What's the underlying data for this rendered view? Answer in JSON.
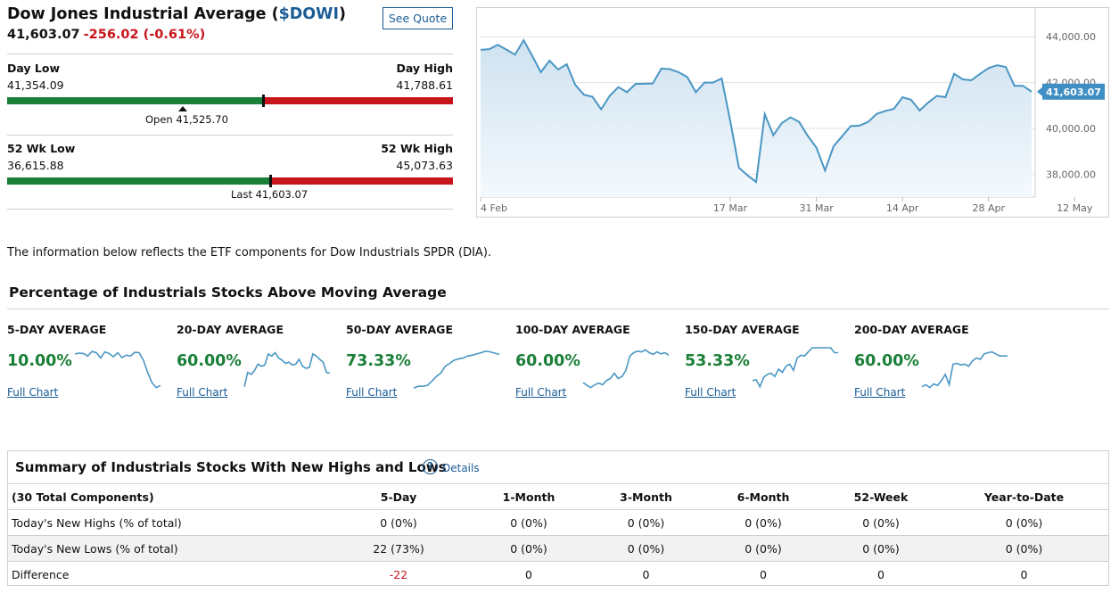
{
  "header": {
    "title": "Dow Jones Industrial Average (",
    "symbol": "$DOWI",
    "title_close": ")",
    "see_quote": "See Quote",
    "price": "41,603.07",
    "change": "-256.02 (-0.61%)"
  },
  "day_range": {
    "low_label": "Day Low",
    "low_value": "41,354.09",
    "high_label": "Day High",
    "high_value": "41,788.61",
    "open_text": "Open 41,525.70",
    "open_fraction": 0.394,
    "current_fraction": 0.574
  },
  "week52_range": {
    "low_label": "52 Wk Low",
    "low_value": "36,615.88",
    "high_label": "52 Wk High",
    "high_value": "45,073.63",
    "last_text": "Last 41,603.07",
    "current_fraction": 0.59
  },
  "colors": {
    "positive": "#1a7f37",
    "negative": "#c8151b",
    "link": "#1a5c96",
    "line": "#4a96c4",
    "price_tag": "#3f8fc5"
  },
  "chart_data": {
    "type": "area",
    "x_ticks": [
      "4 Feb",
      "17 Mar",
      "31 Mar",
      "14 Apr",
      "28 Apr",
      "12 May"
    ],
    "x_tick_index": [
      0,
      29,
      39,
      49,
      59,
      69
    ],
    "y_ticks": [
      "44,000.00",
      "42,000.00",
      "40,000.00",
      "38,000.00"
    ],
    "y_tick_values": [
      44000,
      42000,
      40000,
      38000
    ],
    "ylim": [
      37000,
      45100
    ],
    "last_price_tag": "41,603.07",
    "values": [
      43430,
      43460,
      43650,
      43440,
      43220,
      43850,
      43170,
      42450,
      42960,
      42570,
      42800,
      41900,
      41470,
      41380,
      40830,
      41420,
      41800,
      41580,
      41940,
      41950,
      41960,
      42610,
      42590,
      42450,
      42240,
      41580,
      42000,
      42000,
      42180,
      40330,
      38280,
      37950,
      37660,
      40620,
      39700,
      40240,
      40480,
      40280,
      39670,
      39160,
      38160,
      39220,
      39660,
      40100,
      40120,
      40280,
      40630,
      40760,
      40850,
      41360,
      41250,
      40780,
      41130,
      41420,
      41360,
      42380,
      42140,
      42100,
      42380,
      42630,
      42760,
      42680,
      41860,
      41860,
      41603
    ]
  },
  "info_text": "The information below reflects the ETF components for Dow Industrials SPDR (DIA).",
  "section_title": "Percentage of Industrials Stocks Above Moving Average",
  "averages": [
    {
      "label": "5-DAY AVERAGE",
      "value": "10.00%",
      "link": "Full Chart",
      "spark": [
        85,
        87,
        86,
        80,
        91,
        88,
        75,
        90,
        86,
        78,
        88,
        76,
        82,
        80,
        89,
        88,
        70,
        40,
        15,
        3,
        8
      ]
    },
    {
      "label": "20-DAY AVERAGE",
      "value": "60.00%",
      "link": "Full Chart",
      "spark": [
        5,
        40,
        35,
        45,
        60,
        55,
        58,
        85,
        80,
        88,
        75,
        70,
        62,
        65,
        58,
        60,
        72,
        55,
        50,
        52,
        85,
        80,
        72,
        65,
        40,
        38
      ]
    },
    {
      "label": "50-DAY AVERAGE",
      "value": "73.33%",
      "link": "Full Chart",
      "spark": [
        2,
        6,
        6,
        8,
        18,
        30,
        38,
        55,
        62,
        70,
        73,
        75,
        80,
        82,
        85,
        88,
        92,
        90,
        87,
        84
      ]
    },
    {
      "label": "100-DAY AVERAGE",
      "value": "60.00%",
      "link": "Full Chart",
      "spark": [
        15,
        8,
        3,
        10,
        14,
        10,
        20,
        25,
        38,
        25,
        30,
        45,
        80,
        88,
        92,
        90,
        95,
        88,
        84,
        90,
        85,
        88,
        82
      ]
    },
    {
      "label": "150-DAY AVERAGE",
      "value": "53.33%",
      "link": "Full Chart",
      "spark": [
        20,
        22,
        5,
        28,
        35,
        38,
        30,
        48,
        40,
        55,
        60,
        45,
        75,
        82,
        80,
        90,
        100,
        100,
        100,
        100,
        100,
        100,
        88,
        88
      ]
    },
    {
      "label": "200-DAY AVERAGE",
      "value": "60.00%",
      "link": "Full Chart",
      "spark": [
        5,
        10,
        3,
        12,
        8,
        20,
        35,
        10,
        60,
        62,
        58,
        60,
        55,
        68,
        75,
        72,
        85,
        88,
        90,
        85,
        80,
        80,
        80
      ]
    }
  ],
  "summary": {
    "title": "Summary of Industrials Stocks With New Highs and Lows",
    "help_glyph": "?",
    "details_link": "Details",
    "columns": [
      "(30 Total Components)",
      "5-Day",
      "1-Month",
      "3-Month",
      "6-Month",
      "52-Week",
      "Year-to-Date"
    ],
    "rows": [
      [
        "Today's New Highs (% of total)",
        "0 (0%)",
        "0 (0%)",
        "0 (0%)",
        "0 (0%)",
        "0 (0%)",
        "0 (0%)"
      ],
      [
        "Today's New Lows (% of total)",
        "22 (73%)",
        "0 (0%)",
        "0 (0%)",
        "0 (0%)",
        "0 (0%)",
        "0 (0%)"
      ],
      [
        "Difference",
        "-22",
        "0",
        "0",
        "0",
        "0",
        "0"
      ]
    ]
  }
}
